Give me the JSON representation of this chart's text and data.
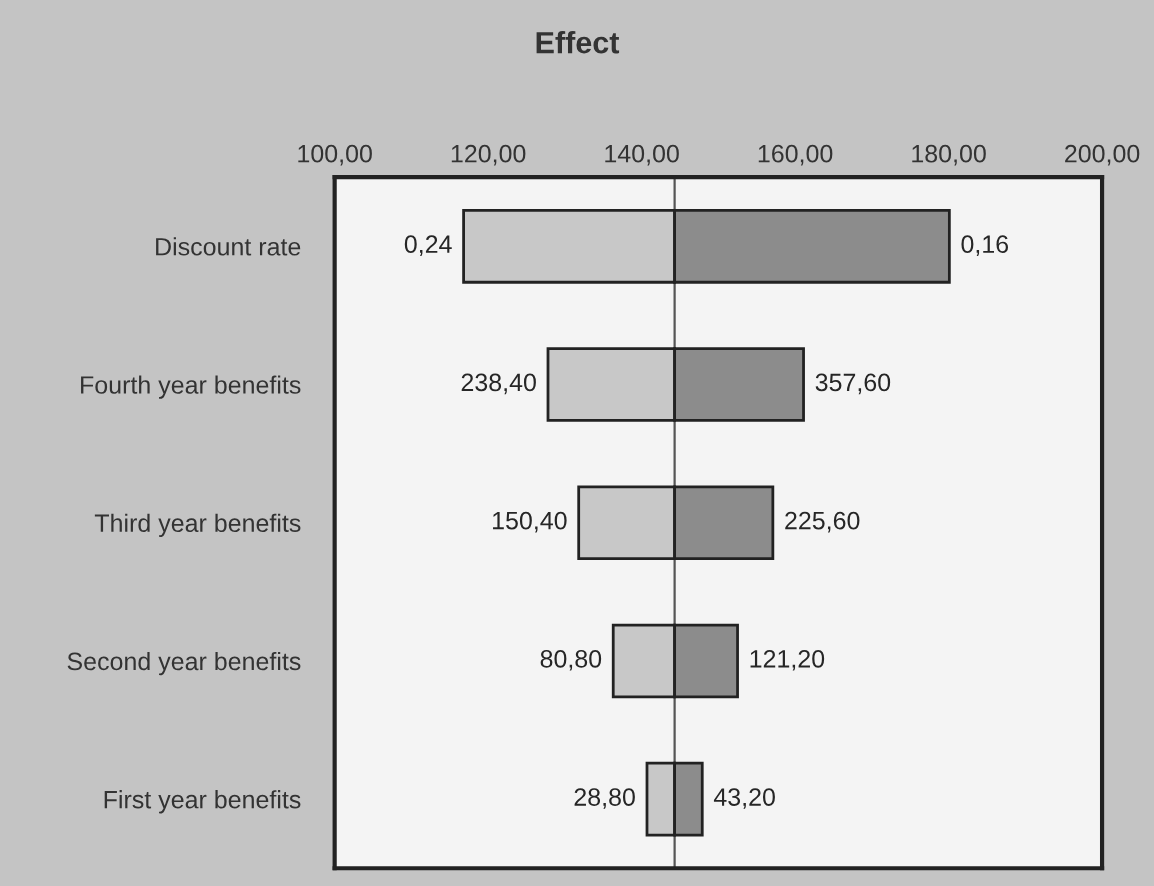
{
  "chart_data": {
    "type": "bar",
    "orientation": "horizontal",
    "title": "Effect",
    "categories": [
      "Discount rate",
      "Fourth year benefits",
      "Third year benefits",
      "Second year benefits",
      "First year benefits"
    ],
    "series": [
      {
        "color": "#c8c8c8",
        "base": [
          116.8,
          127.8,
          131.8,
          136.3,
          140.7
        ],
        "values": [
          27.5,
          16.5,
          12.5,
          8.0,
          3.6
        ]
      },
      {
        "color": "#8c8c8c",
        "base": [
          144.3,
          144.3,
          144.3,
          144.3,
          144.3
        ],
        "values": [
          35.8,
          16.8,
          12.8,
          8.2,
          3.6
        ]
      }
    ],
    "annotations": [
      {
        "text": "0,24",
        "x": 116.8,
        "y": "Discount rate"
      },
      {
        "text": "0,16",
        "x": 180.1,
        "y": "Discount rate"
      },
      {
        "text": "238,40",
        "x": 127.8,
        "y": "Fourth year benefits"
      },
      {
        "text": "357,60",
        "x": 161.1,
        "y": "Fourth year benefits"
      },
      {
        "text": "150,40",
        "x": 131.8,
        "y": "Third year benefits"
      },
      {
        "text": "225,60",
        "x": 157.1,
        "y": "Third year benefits"
      },
      {
        "text": "80,80",
        "x": 136.3,
        "y": "Second year benefits"
      },
      {
        "text": "121,20",
        "x": 152.5,
        "y": "Second year benefits"
      },
      {
        "text": "28,80",
        "x": 140.7,
        "y": "First year benefits"
      },
      {
        "text": "43,20",
        "x": 147.9,
        "y": "First year benefits"
      }
    ],
    "xlim": [
      100,
      200
    ],
    "xticks": [
      {
        "value": 100,
        "label": "100,00"
      },
      {
        "value": 120,
        "label": "120,00"
      },
      {
        "value": 140,
        "label": "140,00"
      },
      {
        "value": 160,
        "label": "160,00"
      },
      {
        "value": 180,
        "label": "180,00"
      },
      {
        "value": 200,
        "label": "200,00"
      }
    ],
    "ref_lines": [
      {
        "axis": "x",
        "value": 144.3,
        "color": "#555555"
      }
    ],
    "grid": false,
    "legend": false
  }
}
